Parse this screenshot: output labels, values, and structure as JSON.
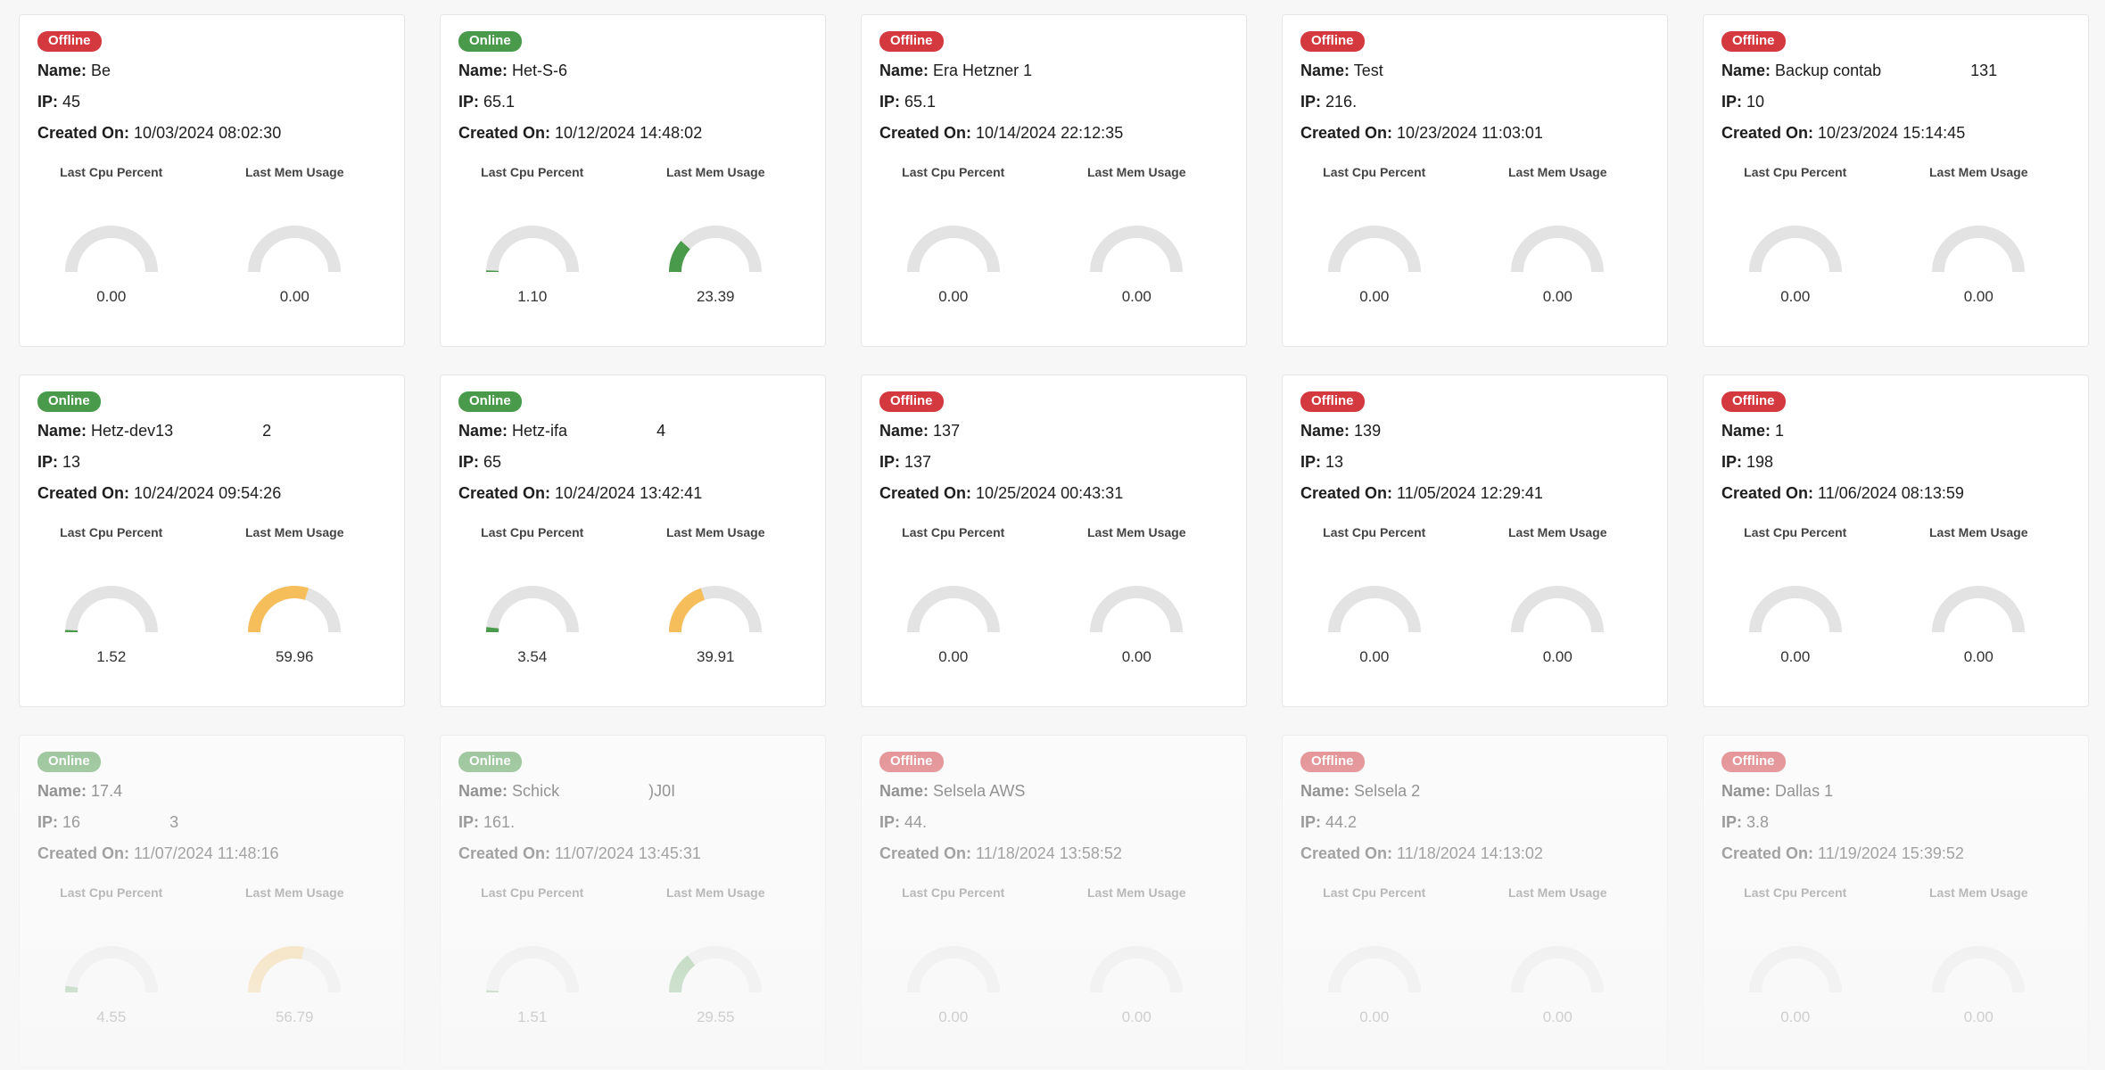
{
  "labels": {
    "name": "Name:",
    "ip": "IP:",
    "created": "Created On:",
    "cpu": "Last Cpu Percent",
    "mem": "Last Mem Usage"
  },
  "colors": {
    "online": "#4a9a4b",
    "offline": "#d3393f",
    "gauge_track": "#e3e3e3",
    "gauge_green": "#4a9a4b",
    "gauge_yellow": "#f5be5a"
  },
  "servers": [
    {
      "status": "Offline",
      "name": "Be",
      "ip": "45",
      "created": "10/03/2024 08:02:30",
      "cpu": "0.00",
      "mem": "0.00"
    },
    {
      "status": "Online",
      "name": "Het-S-6",
      "ip": "65.1",
      "created": "10/12/2024 14:48:02",
      "cpu": "1.10",
      "mem": "23.39"
    },
    {
      "status": "Offline",
      "name": "Era Hetzner 1",
      "ip": "65.1",
      "created": "10/14/2024 22:12:35",
      "cpu": "0.00",
      "mem": "0.00"
    },
    {
      "status": "Offline",
      "name": "Test",
      "ip": "216.",
      "created": "10/23/2024 11:03:01",
      "cpu": "0.00",
      "mem": "0.00"
    },
    {
      "status": "Offline",
      "name": "Backup contab                    131",
      "ip": "10",
      "created": "10/23/2024 15:14:45",
      "cpu": "0.00",
      "mem": "0.00"
    },
    {
      "status": "Online",
      "name": "Hetz-dev13                    2",
      "ip": "13",
      "created": "10/24/2024 09:54:26",
      "cpu": "1.52",
      "mem": "59.96"
    },
    {
      "status": "Online",
      "name": "Hetz-ifa                    4",
      "ip": "65",
      "created": "10/24/2024 13:42:41",
      "cpu": "3.54",
      "mem": "39.91"
    },
    {
      "status": "Offline",
      "name": "137",
      "ip": "137",
      "created": "10/25/2024 00:43:31",
      "cpu": "0.00",
      "mem": "0.00"
    },
    {
      "status": "Offline",
      "name": "139",
      "ip": "13",
      "created": "11/05/2024 12:29:41",
      "cpu": "0.00",
      "mem": "0.00"
    },
    {
      "status": "Offline",
      "name": "1",
      "ip": "198",
      "created": "11/06/2024 08:13:59",
      "cpu": "0.00",
      "mem": "0.00"
    },
    {
      "status": "Online",
      "name": "17.4",
      "ip": "16                    3",
      "created": "11/07/2024 11:48:16",
      "cpu": "4.55",
      "mem": "56.79"
    },
    {
      "status": "Online",
      "name": "Schick                    )J0I",
      "ip": "161.",
      "created": "11/07/2024 13:45:31",
      "cpu": "1.51",
      "mem": "29.55"
    },
    {
      "status": "Offline",
      "name": "Selsela AWS",
      "ip": "44.",
      "created": "11/18/2024 13:58:52",
      "cpu": "0.00",
      "mem": "0.00"
    },
    {
      "status": "Offline",
      "name": "Selsela 2",
      "ip": "44.2",
      "created": "11/18/2024 14:13:02",
      "cpu": "0.00",
      "mem": "0.00"
    },
    {
      "status": "Offline",
      "name": "Dallas 1",
      "ip": "3.8",
      "created": "11/19/2024 15:39:52",
      "cpu": "0.00",
      "mem": "0.00"
    }
  ]
}
